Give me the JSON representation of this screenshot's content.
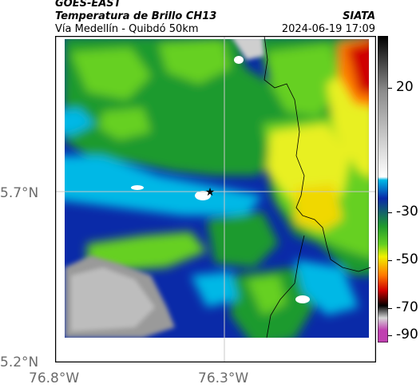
{
  "header": {
    "title_line1": "GOES-EAST",
    "title_line2": "Temperatura de Brillo CH13",
    "subtitle": "Vía Medellín - Quibdó 50km",
    "organization": "SIATA",
    "datetime": "2024-06-19 17:09"
  },
  "map": {
    "lat_labels": [
      "5.7°N",
      "5.2°N"
    ],
    "lon_labels": [
      "76.8°W",
      "76.3°W"
    ],
    "marker": "star-icon"
  },
  "colorbar": {
    "tick_labels": [
      "20",
      "-30",
      "-50",
      "-70",
      "-90"
    ],
    "colors": {
      "white": "#ffffff",
      "light_gray": "#d6d6d6",
      "gray": "#8c8c8c",
      "black": "#000000",
      "cyan": "#00b8e6",
      "blue": "#0a2aa8",
      "green": "#1f9a2e",
      "light_green": "#66d020",
      "yellow": "#f0f000",
      "orange": "#ff7a00",
      "red": "#d00000",
      "magenta": "#c040b0"
    }
  }
}
